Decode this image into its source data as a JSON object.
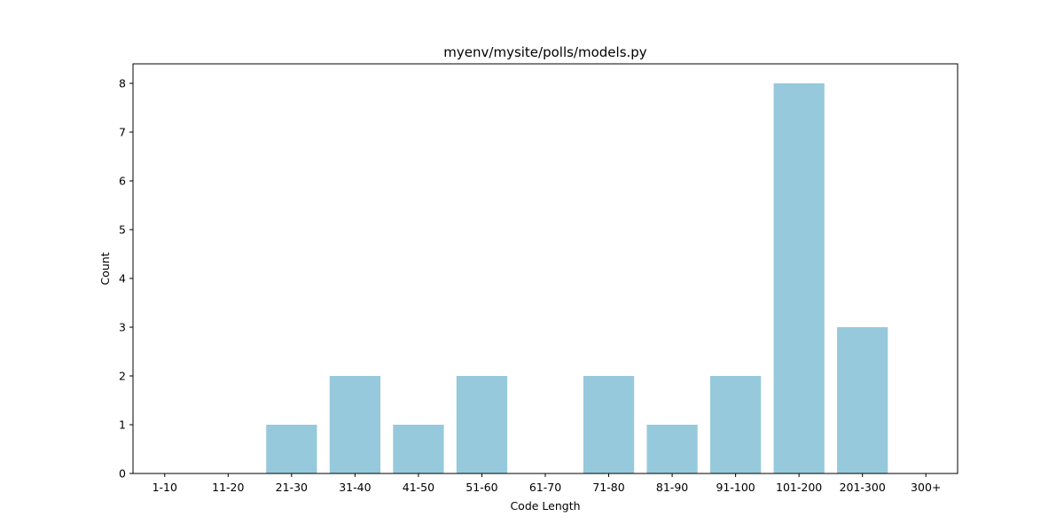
{
  "chart_data": {
    "type": "bar",
    "title": "myenv/mysite/polls/models.py",
    "xlabel": "Code Length",
    "ylabel": "Count",
    "categories": [
      "1-10",
      "11-20",
      "21-30",
      "31-40",
      "41-50",
      "51-60",
      "61-70",
      "71-80",
      "81-90",
      "91-100",
      "101-200",
      "201-300",
      "300+"
    ],
    "values": [
      0,
      0,
      1,
      2,
      1,
      2,
      0,
      2,
      1,
      2,
      8,
      3,
      0
    ],
    "ylim": [
      0,
      8.4
    ],
    "yticks": [
      "0",
      "1",
      "2",
      "3",
      "4",
      "5",
      "6",
      "7",
      "8"
    ],
    "grid": false,
    "legend": "none",
    "bar_color": "#96c9dc"
  }
}
